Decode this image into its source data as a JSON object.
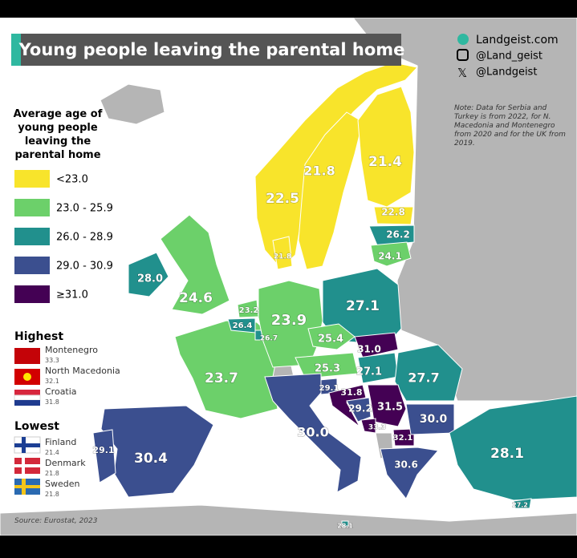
{
  "header": {
    "title": "Young people leaving the parental home"
  },
  "social": [
    "Landgeist.com",
    "@Land_geist",
    "@Landgeist"
  ],
  "note": "Note: Data for Serbia and Turkey is from 2022, for N. Macedonia and Montenegro from 2020 and for the UK from 2019.",
  "legend": {
    "title": "Average age of young people leaving the parental home",
    "bins": [
      {
        "label": "<23.0",
        "color": "#f8e42b"
      },
      {
        "label": "23.0 - 25.9",
        "color": "#6cd06a"
      },
      {
        "label": "26.0 - 28.9",
        "color": "#21908d"
      },
      {
        "label": "29.0 - 30.9",
        "color": "#3b4f8f"
      },
      {
        "label": "≥31.0",
        "color": "#440154"
      }
    ]
  },
  "highest": {
    "title": "Highest",
    "items": [
      {
        "name": "Montenegro",
        "value": "33.3"
      },
      {
        "name": "North Macedonia",
        "value": "32.1"
      },
      {
        "name": "Croatia",
        "value": "31.8"
      }
    ]
  },
  "lowest": {
    "title": "Lowest",
    "items": [
      {
        "name": "Finland",
        "value": "21.4"
      },
      {
        "name": "Denmark",
        "value": "21.8"
      },
      {
        "name": "Sweden",
        "value": "21.8"
      }
    ]
  },
  "source": "Source: Eurostat, 2023",
  "regions": [
    {
      "value": "22.5",
      "color": "#f8e42b"
    },
    {
      "value": "21.8",
      "color": "#f8e42b"
    },
    {
      "value": "21.4",
      "color": "#f8e42b"
    },
    {
      "value": "22.8",
      "color": "#f8e42b"
    },
    {
      "value": "26.2",
      "color": "#21908d"
    },
    {
      "value": "24.1",
      "color": "#6cd06a"
    },
    {
      "value": "21.8",
      "color": "#f8e42b"
    },
    {
      "value": "28.0",
      "color": "#21908d"
    },
    {
      "value": "24.6",
      "color": "#6cd06a"
    },
    {
      "value": "23.7",
      "color": "#6cd06a"
    },
    {
      "value": "30.4",
      "color": "#3b4f8f"
    },
    {
      "value": "29.1",
      "color": "#3b4f8f"
    },
    {
      "value": "23.2",
      "color": "#6cd06a"
    },
    {
      "value": "26.4",
      "color": "#21908d"
    },
    {
      "value": "26.7",
      "color": "#21908d"
    },
    {
      "value": "23.9",
      "color": "#6cd06a"
    },
    {
      "value": "27.1",
      "color": "#21908d"
    },
    {
      "value": "25.4",
      "color": "#6cd06a"
    },
    {
      "value": "31.0",
      "color": "#440154"
    },
    {
      "value": "25.3",
      "color": "#6cd06a"
    },
    {
      "value": "27.1",
      "color": "#21908d"
    },
    {
      "value": "27.7",
      "color": "#21908d"
    },
    {
      "value": "29.1",
      "color": "#3b4f8f"
    },
    {
      "value": "31.8",
      "color": "#440154"
    },
    {
      "value": "29.2",
      "color": "#3b4f8f"
    },
    {
      "value": "31.5",
      "color": "#440154"
    },
    {
      "value": "33.3",
      "color": "#440154"
    },
    {
      "value": "32.1",
      "color": "#440154"
    },
    {
      "value": "30.0",
      "color": "#3b4f8f"
    },
    {
      "value": "30.6",
      "color": "#3b4f8f"
    },
    {
      "value": "30.0",
      "color": "#3b4f8f"
    },
    {
      "value": "28.1",
      "color": "#21908d"
    },
    {
      "value": "27.2",
      "color": "#21908d"
    },
    {
      "value": "28.1",
      "color": "#21908d"
    }
  ]
}
